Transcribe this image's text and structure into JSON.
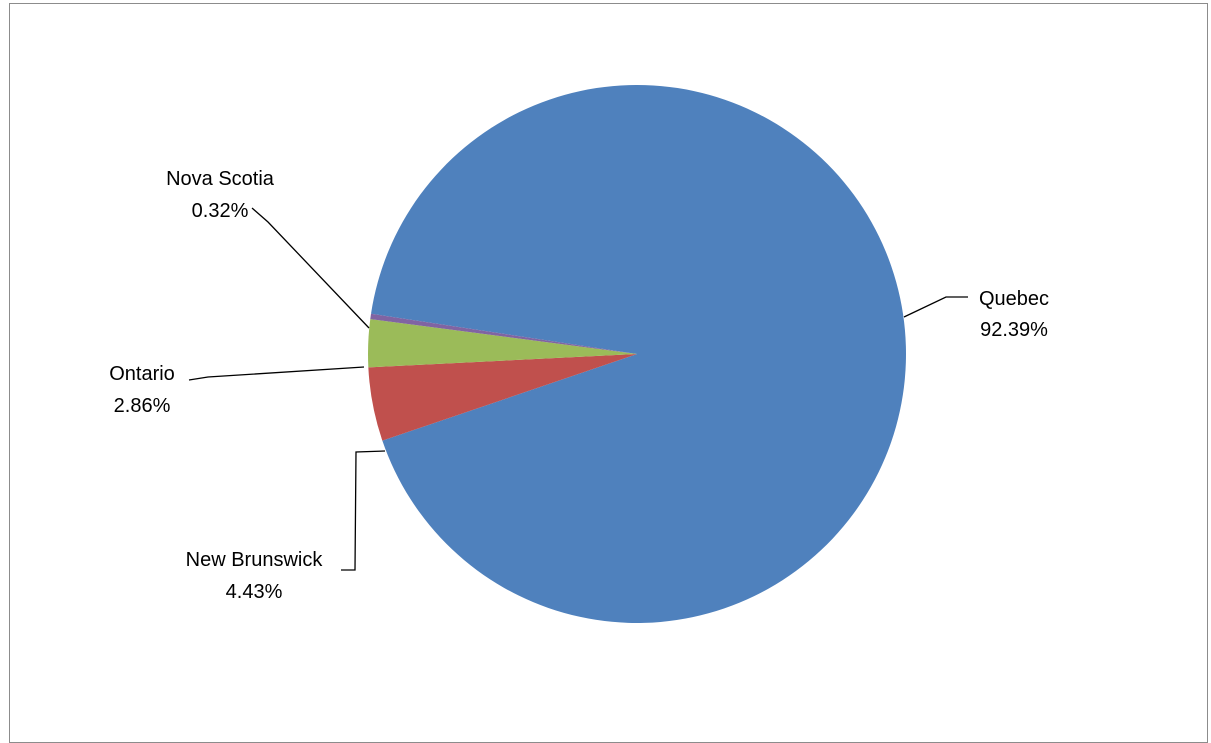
{
  "chart_data": {
    "type": "pie",
    "title": "",
    "slices": [
      {
        "name": "Quebec",
        "value": 92.39,
        "label": "92.39%",
        "color": "#4f81bd"
      },
      {
        "name": "New Brunswick",
        "value": 4.43,
        "label": "4.43%",
        "color": "#c0504d"
      },
      {
        "name": "Ontario",
        "value": 2.86,
        "label": "2.86%",
        "color": "#9bbb59"
      },
      {
        "name": "Nova Scotia",
        "value": 0.32,
        "label": "0.32%",
        "color": "#8064a2"
      }
    ],
    "legend": "none",
    "data_labels": "outside with leader lines"
  }
}
